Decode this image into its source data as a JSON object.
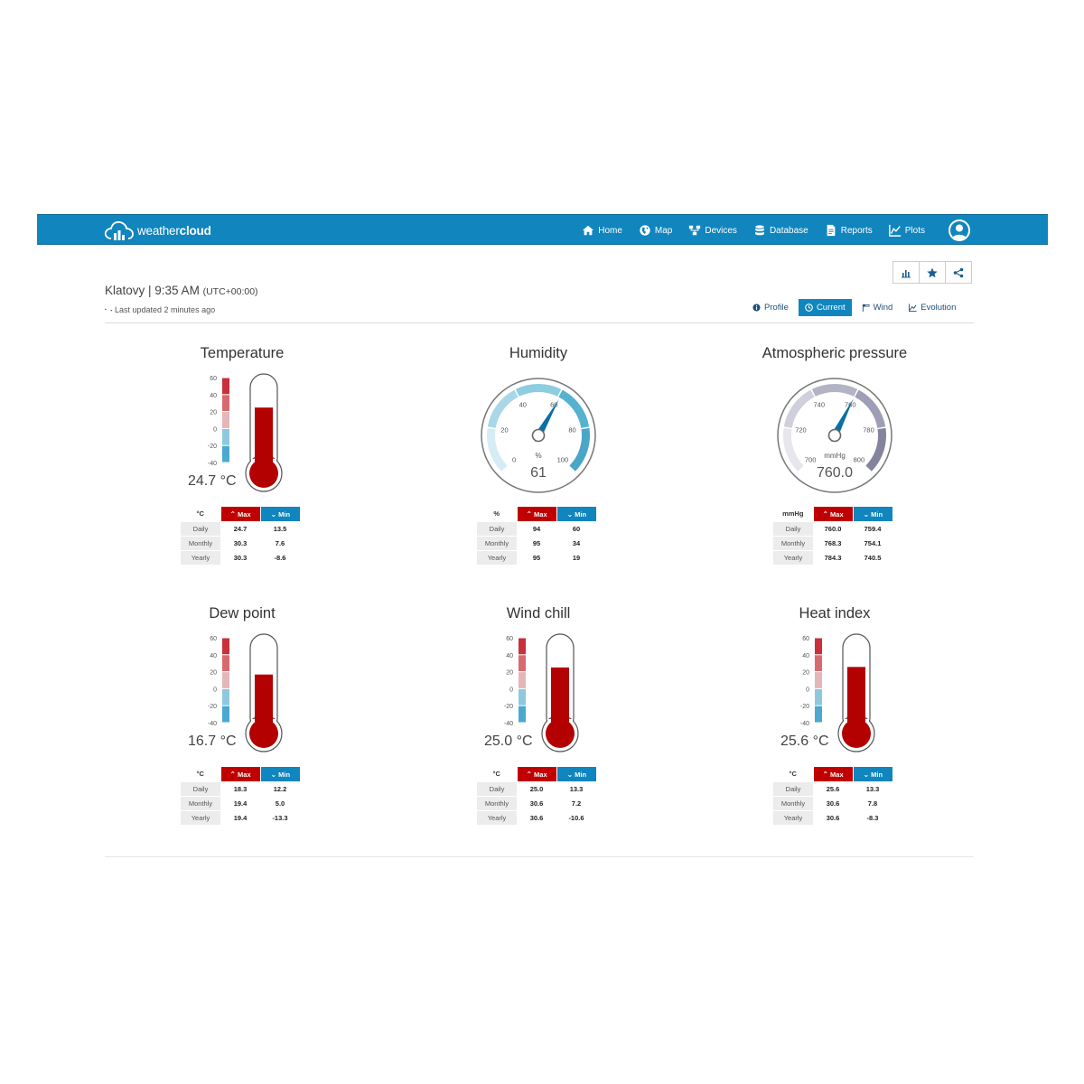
{
  "brand": {
    "name_prefix": "weather",
    "name_suffix": "cloud"
  },
  "nav": {
    "home": "Home",
    "map": "Map",
    "devices": "Devices",
    "database": "Database",
    "reports": "Reports",
    "plots": "Plots"
  },
  "station": {
    "name_time": "Klatovy | 9:35 AM",
    "timezone": "(UTC+00:00)",
    "updated": "Last updated 2 minutes ago"
  },
  "tabs": {
    "profile": "Profile",
    "current": "Current",
    "wind": "Wind",
    "evolution": "Evolution"
  },
  "colors": {
    "brand_blue": "#1185bd",
    "max_red": "#c00000",
    "mercury": "#b30000"
  },
  "temperature": {
    "title": "Temperature",
    "value": "24.7 °C",
    "level": 24.7,
    "scale": [
      "60",
      "40",
      "20",
      "0",
      "-20",
      "-40"
    ],
    "unit": "°C",
    "max_label": "Max",
    "min_label": "Min",
    "rows": [
      {
        "label": "Daily",
        "max": "24.7",
        "min": "13.5"
      },
      {
        "label": "Monthly",
        "max": "30.3",
        "min": "7.6"
      },
      {
        "label": "Yearly",
        "max": "30.3",
        "min": "-8.6"
      }
    ]
  },
  "humidity": {
    "title": "Humidity",
    "value": "61",
    "unit_label": "%",
    "reading": 61,
    "ticks": [
      "0",
      "20",
      "40",
      "60",
      "80",
      "100"
    ],
    "unit": "%",
    "max_label": "Max",
    "min_label": "Min",
    "rows": [
      {
        "label": "Daily",
        "max": "94",
        "min": "60"
      },
      {
        "label": "Monthly",
        "max": "95",
        "min": "34"
      },
      {
        "label": "Yearly",
        "max": "95",
        "min": "19"
      }
    ]
  },
  "pressure": {
    "title": "Atmospheric pressure",
    "value": "760.0",
    "unit_label": "mmHg",
    "reading": 760.0,
    "ticks": [
      "700",
      "720",
      "740",
      "760",
      "780",
      "800"
    ],
    "unit": "mmHg",
    "max_label": "Max",
    "min_label": "Min",
    "rows": [
      {
        "label": "Daily",
        "max": "760.0",
        "min": "759.4"
      },
      {
        "label": "Monthly",
        "max": "768.3",
        "min": "754.1"
      },
      {
        "label": "Yearly",
        "max": "784.3",
        "min": "740.5"
      }
    ]
  },
  "dewpoint": {
    "title": "Dew point",
    "value": "16.7 °C",
    "level": 16.7,
    "scale": [
      "60",
      "40",
      "20",
      "0",
      "-20",
      "-40"
    ],
    "unit": "°C",
    "max_label": "Max",
    "min_label": "Min",
    "rows": [
      {
        "label": "Daily",
        "max": "18.3",
        "min": "12.2"
      },
      {
        "label": "Monthly",
        "max": "19.4",
        "min": "5.0"
      },
      {
        "label": "Yearly",
        "max": "19.4",
        "min": "-13.3"
      }
    ]
  },
  "windchill": {
    "title": "Wind chill",
    "value": "25.0 °C",
    "level": 25.0,
    "scale": [
      "60",
      "40",
      "20",
      "0",
      "-20",
      "-40"
    ],
    "unit": "°C",
    "max_label": "Max",
    "min_label": "Min",
    "rows": [
      {
        "label": "Daily",
        "max": "25.0",
        "min": "13.3"
      },
      {
        "label": "Monthly",
        "max": "30.6",
        "min": "7.2"
      },
      {
        "label": "Yearly",
        "max": "30.6",
        "min": "-10.6"
      }
    ]
  },
  "heatindex": {
    "title": "Heat index",
    "value": "25.6 °C",
    "level": 25.6,
    "scale": [
      "60",
      "40",
      "20",
      "0",
      "-20",
      "-40"
    ],
    "unit": "°C",
    "max_label": "Max",
    "min_label": "Min",
    "rows": [
      {
        "label": "Daily",
        "max": "25.6",
        "min": "13.3"
      },
      {
        "label": "Monthly",
        "max": "30.6",
        "min": "7.8"
      },
      {
        "label": "Yearly",
        "max": "30.6",
        "min": "-8.3"
      }
    ]
  }
}
